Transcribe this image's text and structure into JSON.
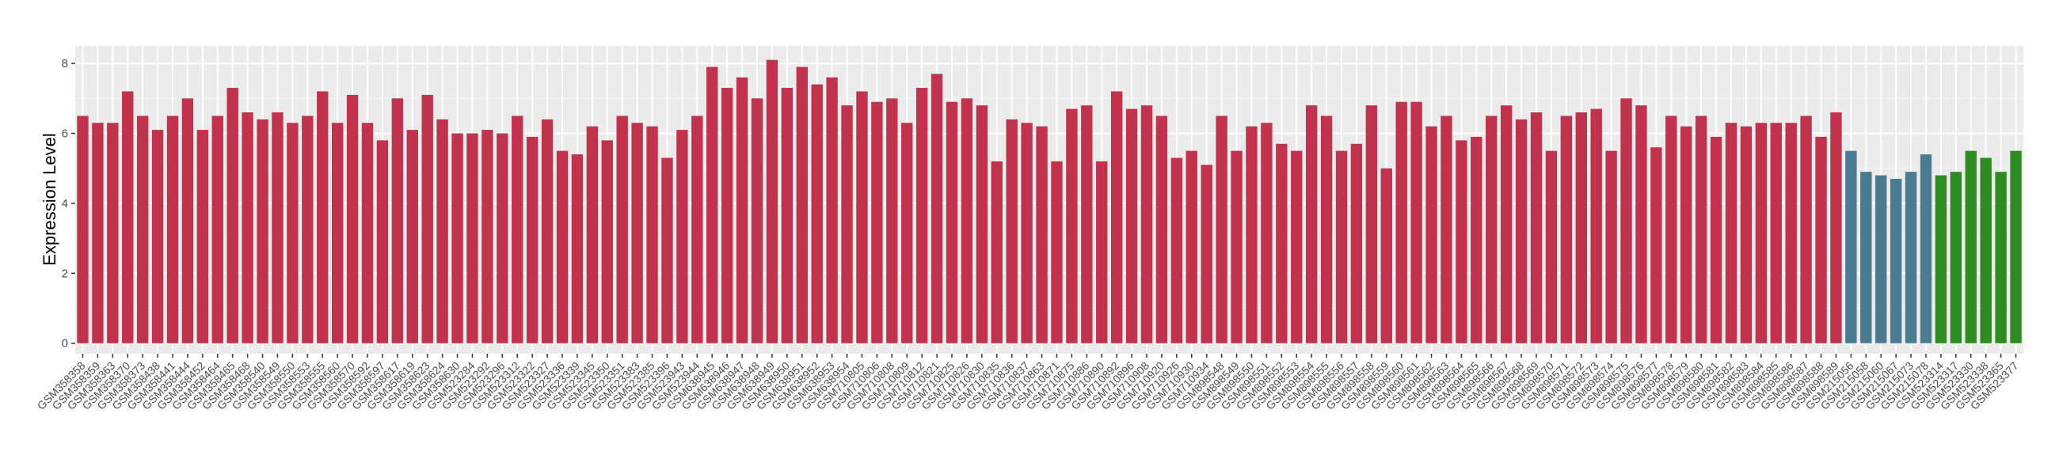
{
  "chart_data": {
    "type": "bar",
    "ylabel": "Expression Level",
    "ylim": [
      -0.3,
      8.5
    ],
    "yticks": [
      0,
      2,
      4,
      6,
      8
    ],
    "grid": true,
    "categories": [
      "GSM358358",
      "GSM358359",
      "GSM358363",
      "GSM358370",
      "GSM358373",
      "GSM358438",
      "GSM358441",
      "GSM358444",
      "GSM358452",
      "GSM358464",
      "GSM358465",
      "GSM358468",
      "GSM358540",
      "GSM358549",
      "GSM358550",
      "GSM358553",
      "GSM358555",
      "GSM358560",
      "GSM358570",
      "GSM358592",
      "GSM358597",
      "GSM358617",
      "GSM358619",
      "GSM358623",
      "GSM358624",
      "GSM358630",
      "GSM523284",
      "GSM523292",
      "GSM523296",
      "GSM523312",
      "GSM523322",
      "GSM523327",
      "GSM523336",
      "GSM523339",
      "GSM523345",
      "GSM523350",
      "GSM523351",
      "GSM523383",
      "GSM523385",
      "GSM523396",
      "GSM523943",
      "GSM523944",
      "GSM638945",
      "GSM638946",
      "GSM638947",
      "GSM638948",
      "GSM638949",
      "GSM638950",
      "GSM638951",
      "GSM638952",
      "GSM638953",
      "GSM638954",
      "GSM710805",
      "GSM710806",
      "GSM710808",
      "GSM710809",
      "GSM710812",
      "GSM710821",
      "GSM710825",
      "GSM710826",
      "GSM710830",
      "GSM710835",
      "GSM710836",
      "GSM710837",
      "GSM710863",
      "GSM710871",
      "GSM710875",
      "GSM710886",
      "GSM710890",
      "GSM710892",
      "GSM710896",
      "GSM710908",
      "GSM710920",
      "GSM710926",
      "GSM710930",
      "GSM710934",
      "GSM898548",
      "GSM898549",
      "GSM898550",
      "GSM898551",
      "GSM898552",
      "GSM898553",
      "GSM898554",
      "GSM898555",
      "GSM898556",
      "GSM898557",
      "GSM898558",
      "GSM898559",
      "GSM898560",
      "GSM898561",
      "GSM898562",
      "GSM898563",
      "GSM898564",
      "GSM898565",
      "GSM898566",
      "GSM898567",
      "GSM898568",
      "GSM898569",
      "GSM898570",
      "GSM898571",
      "GSM898572",
      "GSM898573",
      "GSM898574",
      "GSM898575",
      "GSM898576",
      "GSM898577",
      "GSM898578",
      "GSM898579",
      "GSM898580",
      "GSM898581",
      "GSM898582",
      "GSM898583",
      "GSM898584",
      "GSM898585",
      "GSM898586",
      "GSM898587",
      "GSM898588",
      "GSM898589",
      "GSM215056",
      "GSM215058",
      "GSM215060",
      "GSM215067",
      "GSM215073",
      "GSM215078",
      "GSM523314",
      "GSM523317",
      "GSM523330",
      "GSM523338",
      "GSM523365",
      "GSM523377"
    ],
    "values": [
      6.5,
      6.3,
      6.3,
      7.2,
      6.5,
      6.1,
      6.5,
      7.0,
      6.1,
      6.5,
      7.3,
      6.6,
      6.4,
      6.6,
      6.3,
      6.5,
      7.2,
      6.3,
      7.1,
      6.3,
      5.8,
      7.0,
      6.1,
      7.1,
      6.4,
      6.0,
      6.0,
      6.1,
      6.0,
      6.5,
      5.9,
      6.4,
      5.5,
      5.4,
      6.2,
      5.8,
      6.5,
      6.3,
      6.2,
      5.3,
      6.1,
      6.5,
      7.9,
      7.3,
      7.6,
      7.0,
      8.1,
      7.3,
      7.9,
      7.4,
      7.6,
      6.8,
      7.2,
      6.9,
      7.0,
      6.3,
      7.3,
      7.7,
      6.9,
      7.0,
      6.8,
      5.2,
      6.4,
      6.3,
      6.2,
      5.2,
      6.7,
      6.8,
      5.2,
      7.2,
      6.7,
      6.8,
      6.5,
      5.3,
      5.5,
      5.1,
      6.5,
      5.5,
      6.2,
      6.3,
      5.7,
      5.5,
      6.8,
      6.5,
      5.5,
      5.7,
      6.8,
      5.0,
      6.9,
      6.9,
      6.2,
      6.5,
      5.8,
      5.9,
      6.5,
      6.8,
      6.4,
      6.6,
      5.5,
      6.5,
      6.6,
      6.7,
      5.5,
      7.0,
      6.8,
      5.6,
      6.5,
      6.2,
      6.5,
      5.9,
      6.3,
      6.2,
      6.3,
      6.3,
      6.3,
      6.5,
      5.9,
      6.6,
      5.5,
      4.9,
      4.8,
      4.7,
      4.9,
      5.4,
      4.8,
      4.9,
      5.5,
      5.3,
      4.9,
      5.5
    ],
    "colors": [
      "#c1334c",
      "#c1334c",
      "#c1334c",
      "#c1334c",
      "#c1334c",
      "#c1334c",
      "#c1334c",
      "#c1334c",
      "#c1334c",
      "#c1334c",
      "#c1334c",
      "#c1334c",
      "#c1334c",
      "#c1334c",
      "#c1334c",
      "#c1334c",
      "#c1334c",
      "#c1334c",
      "#c1334c",
      "#c1334c",
      "#c1334c",
      "#c1334c",
      "#c1334c",
      "#c1334c",
      "#c1334c",
      "#c1334c",
      "#c1334c",
      "#c1334c",
      "#c1334c",
      "#c1334c",
      "#c1334c",
      "#c1334c",
      "#c1334c",
      "#c1334c",
      "#c1334c",
      "#c1334c",
      "#c1334c",
      "#c1334c",
      "#c1334c",
      "#c1334c",
      "#c1334c",
      "#c1334c",
      "#c1334c",
      "#c1334c",
      "#c1334c",
      "#c1334c",
      "#c1334c",
      "#c1334c",
      "#c1334c",
      "#c1334c",
      "#c1334c",
      "#c1334c",
      "#c1334c",
      "#c1334c",
      "#c1334c",
      "#c1334c",
      "#c1334c",
      "#c1334c",
      "#c1334c",
      "#c1334c",
      "#c1334c",
      "#c1334c",
      "#c1334c",
      "#c1334c",
      "#c1334c",
      "#c1334c",
      "#c1334c",
      "#c1334c",
      "#c1334c",
      "#c1334c",
      "#c1334c",
      "#c1334c",
      "#c1334c",
      "#c1334c",
      "#c1334c",
      "#c1334c",
      "#c1334c",
      "#c1334c",
      "#c1334c",
      "#c1334c",
      "#c1334c",
      "#c1334c",
      "#c1334c",
      "#c1334c",
      "#c1334c",
      "#c1334c",
      "#c1334c",
      "#c1334c",
      "#c1334c",
      "#c1334c",
      "#c1334c",
      "#c1334c",
      "#c1334c",
      "#c1334c",
      "#c1334c",
      "#c1334c",
      "#c1334c",
      "#c1334c",
      "#c1334c",
      "#c1334c",
      "#c1334c",
      "#c1334c",
      "#c1334c",
      "#c1334c",
      "#c1334c",
      "#c1334c",
      "#c1334c",
      "#c1334c",
      "#c1334c",
      "#c1334c",
      "#c1334c",
      "#c1334c",
      "#c1334c",
      "#c1334c",
      "#c1334c",
      "#c1334c",
      "#c1334c",
      "#c1334c",
      "#4a7b91",
      "#4a7b91",
      "#4a7b91",
      "#4a7b91",
      "#4a7b91",
      "#4a7b91",
      "#2e8b22",
      "#2e8b22",
      "#2e8b22",
      "#2e8b22",
      "#2e8b22",
      "#2e8b22"
    ]
  }
}
